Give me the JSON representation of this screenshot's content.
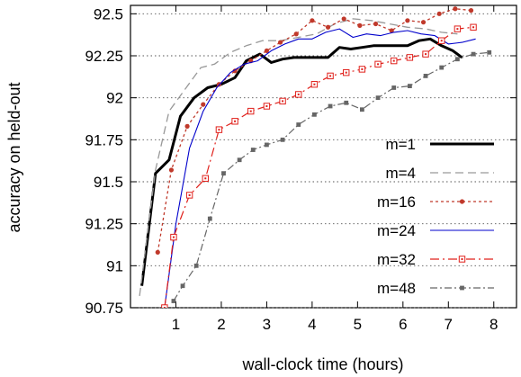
{
  "chart_data": {
    "type": "line",
    "title": "",
    "xlabel": "wall-clock time (hours)",
    "ylabel": "accuracy on held-out",
    "xlim": [
      0,
      8.5
    ],
    "ylim": [
      90.75,
      92.55
    ],
    "xticks": [
      1,
      2,
      3,
      4,
      5,
      6,
      7,
      8
    ],
    "yticks": [
      90.75,
      91,
      91.25,
      91.5,
      91.75,
      92,
      92.25,
      92.5
    ],
    "xtick_labels": [
      "1",
      "2",
      "3",
      "4",
      "5",
      "6",
      "7",
      "8"
    ],
    "ytick_labels": [
      "90.75",
      "91",
      "91.25",
      "91.5",
      "91.75",
      "92",
      "92.25",
      "92.5"
    ],
    "grid": "horizontal dotted",
    "legend_position": "right",
    "series": [
      {
        "name": "m=1",
        "color": "#000000",
        "dash": "",
        "width": 3,
        "marker": "none",
        "x": [
          0.25,
          0.55,
          0.85,
          1.1,
          1.4,
          1.7,
          2.0,
          2.3,
          2.55,
          2.85,
          3.1,
          3.35,
          3.6,
          3.85,
          4.1,
          4.35,
          4.6,
          4.85,
          5.1,
          5.35,
          5.6,
          5.85,
          6.1,
          6.35,
          6.6,
          6.85,
          7.1,
          7.3
        ],
        "y": [
          90.88,
          91.55,
          91.63,
          91.89,
          92.0,
          92.06,
          92.08,
          92.12,
          92.22,
          92.26,
          92.21,
          92.23,
          92.24,
          92.24,
          92.24,
          92.24,
          92.3,
          92.29,
          92.3,
          92.31,
          92.31,
          92.31,
          92.31,
          92.34,
          92.35,
          92.31,
          92.28,
          92.24
        ]
      },
      {
        "name": "m=4",
        "color": "#999999",
        "dash": "9 5",
        "width": 1.3,
        "marker": "none",
        "x": [
          0.2,
          0.55,
          0.85,
          1.2,
          1.55,
          1.85,
          2.2,
          2.55,
          2.9,
          3.3,
          3.7,
          4.1,
          4.5,
          4.9,
          5.3,
          5.7,
          6.1,
          6.5,
          6.85,
          7.2
        ],
        "y": [
          90.82,
          91.57,
          91.92,
          92.05,
          92.18,
          92.2,
          92.27,
          92.31,
          92.34,
          92.34,
          92.36,
          92.38,
          92.44,
          92.47,
          92.46,
          92.44,
          92.42,
          92.41,
          92.39,
          92.38
        ]
      },
      {
        "name": "m=16",
        "color": "#c0392b",
        "dash": "3 3",
        "width": 1.3,
        "marker": "dot",
        "x": [
          0.6,
          0.9,
          1.25,
          1.6,
          1.95,
          2.3,
          2.65,
          3.0,
          3.3,
          3.65,
          4.0,
          4.35,
          4.7,
          5.05,
          5.4,
          5.75,
          6.1,
          6.45,
          6.8,
          7.15,
          7.5
        ],
        "y": [
          91.08,
          91.57,
          91.83,
          91.96,
          92.08,
          92.16,
          92.22,
          92.28,
          92.33,
          92.38,
          92.46,
          92.42,
          92.47,
          92.43,
          92.44,
          92.4,
          92.46,
          92.45,
          92.5,
          92.53,
          92.52
        ]
      },
      {
        "name": "m=24",
        "color": "#0000cc",
        "dash": "",
        "width": 1.1,
        "marker": "none",
        "x": [
          0.75,
          1.0,
          1.3,
          1.6,
          1.9,
          2.2,
          2.5,
          2.8,
          3.1,
          3.4,
          3.7,
          4.0,
          4.3,
          4.6,
          4.9,
          5.2,
          5.5,
          5.8,
          6.1,
          6.4,
          6.7,
          7.0,
          7.3,
          7.6
        ],
        "y": [
          90.75,
          91.25,
          91.7,
          91.92,
          92.06,
          92.15,
          92.2,
          92.22,
          92.28,
          92.32,
          92.35,
          92.35,
          92.39,
          92.41,
          92.36,
          92.38,
          92.37,
          92.39,
          92.4,
          92.38,
          92.37,
          92.32,
          92.33,
          92.35
        ]
      },
      {
        "name": "m=32",
        "color": "#e0201b",
        "dash": "10 4 2 4",
        "width": 1.2,
        "marker": "square",
        "x": [
          0.75,
          0.95,
          1.3,
          1.65,
          1.95,
          2.3,
          2.65,
          3.0,
          3.35,
          3.7,
          4.05,
          4.4,
          4.75,
          5.1,
          5.45,
          5.8,
          6.15,
          6.5,
          6.85,
          7.2,
          7.55
        ],
        "y": [
          90.75,
          91.17,
          91.42,
          91.52,
          91.81,
          91.86,
          91.92,
          91.95,
          91.98,
          92.02,
          92.08,
          92.13,
          92.15,
          92.17,
          92.2,
          92.22,
          92.24,
          92.26,
          92.34,
          92.41,
          92.42
        ]
      },
      {
        "name": "m=48",
        "color": "#666666",
        "dash": "8 3 2 3",
        "width": 1.2,
        "marker": "small-square",
        "x": [
          0.95,
          1.15,
          1.45,
          1.75,
          2.05,
          2.4,
          2.7,
          3.0,
          3.35,
          3.7,
          4.05,
          4.4,
          4.75,
          5.1,
          5.45,
          5.8,
          6.15,
          6.5,
          6.85,
          7.2,
          7.55,
          7.9
        ],
        "y": [
          90.79,
          90.88,
          91.0,
          91.28,
          91.55,
          91.63,
          91.69,
          91.72,
          91.75,
          91.84,
          91.9,
          91.95,
          91.97,
          91.93,
          92.0,
          92.06,
          92.07,
          92.13,
          92.18,
          92.23,
          92.26,
          92.27
        ]
      }
    ]
  }
}
